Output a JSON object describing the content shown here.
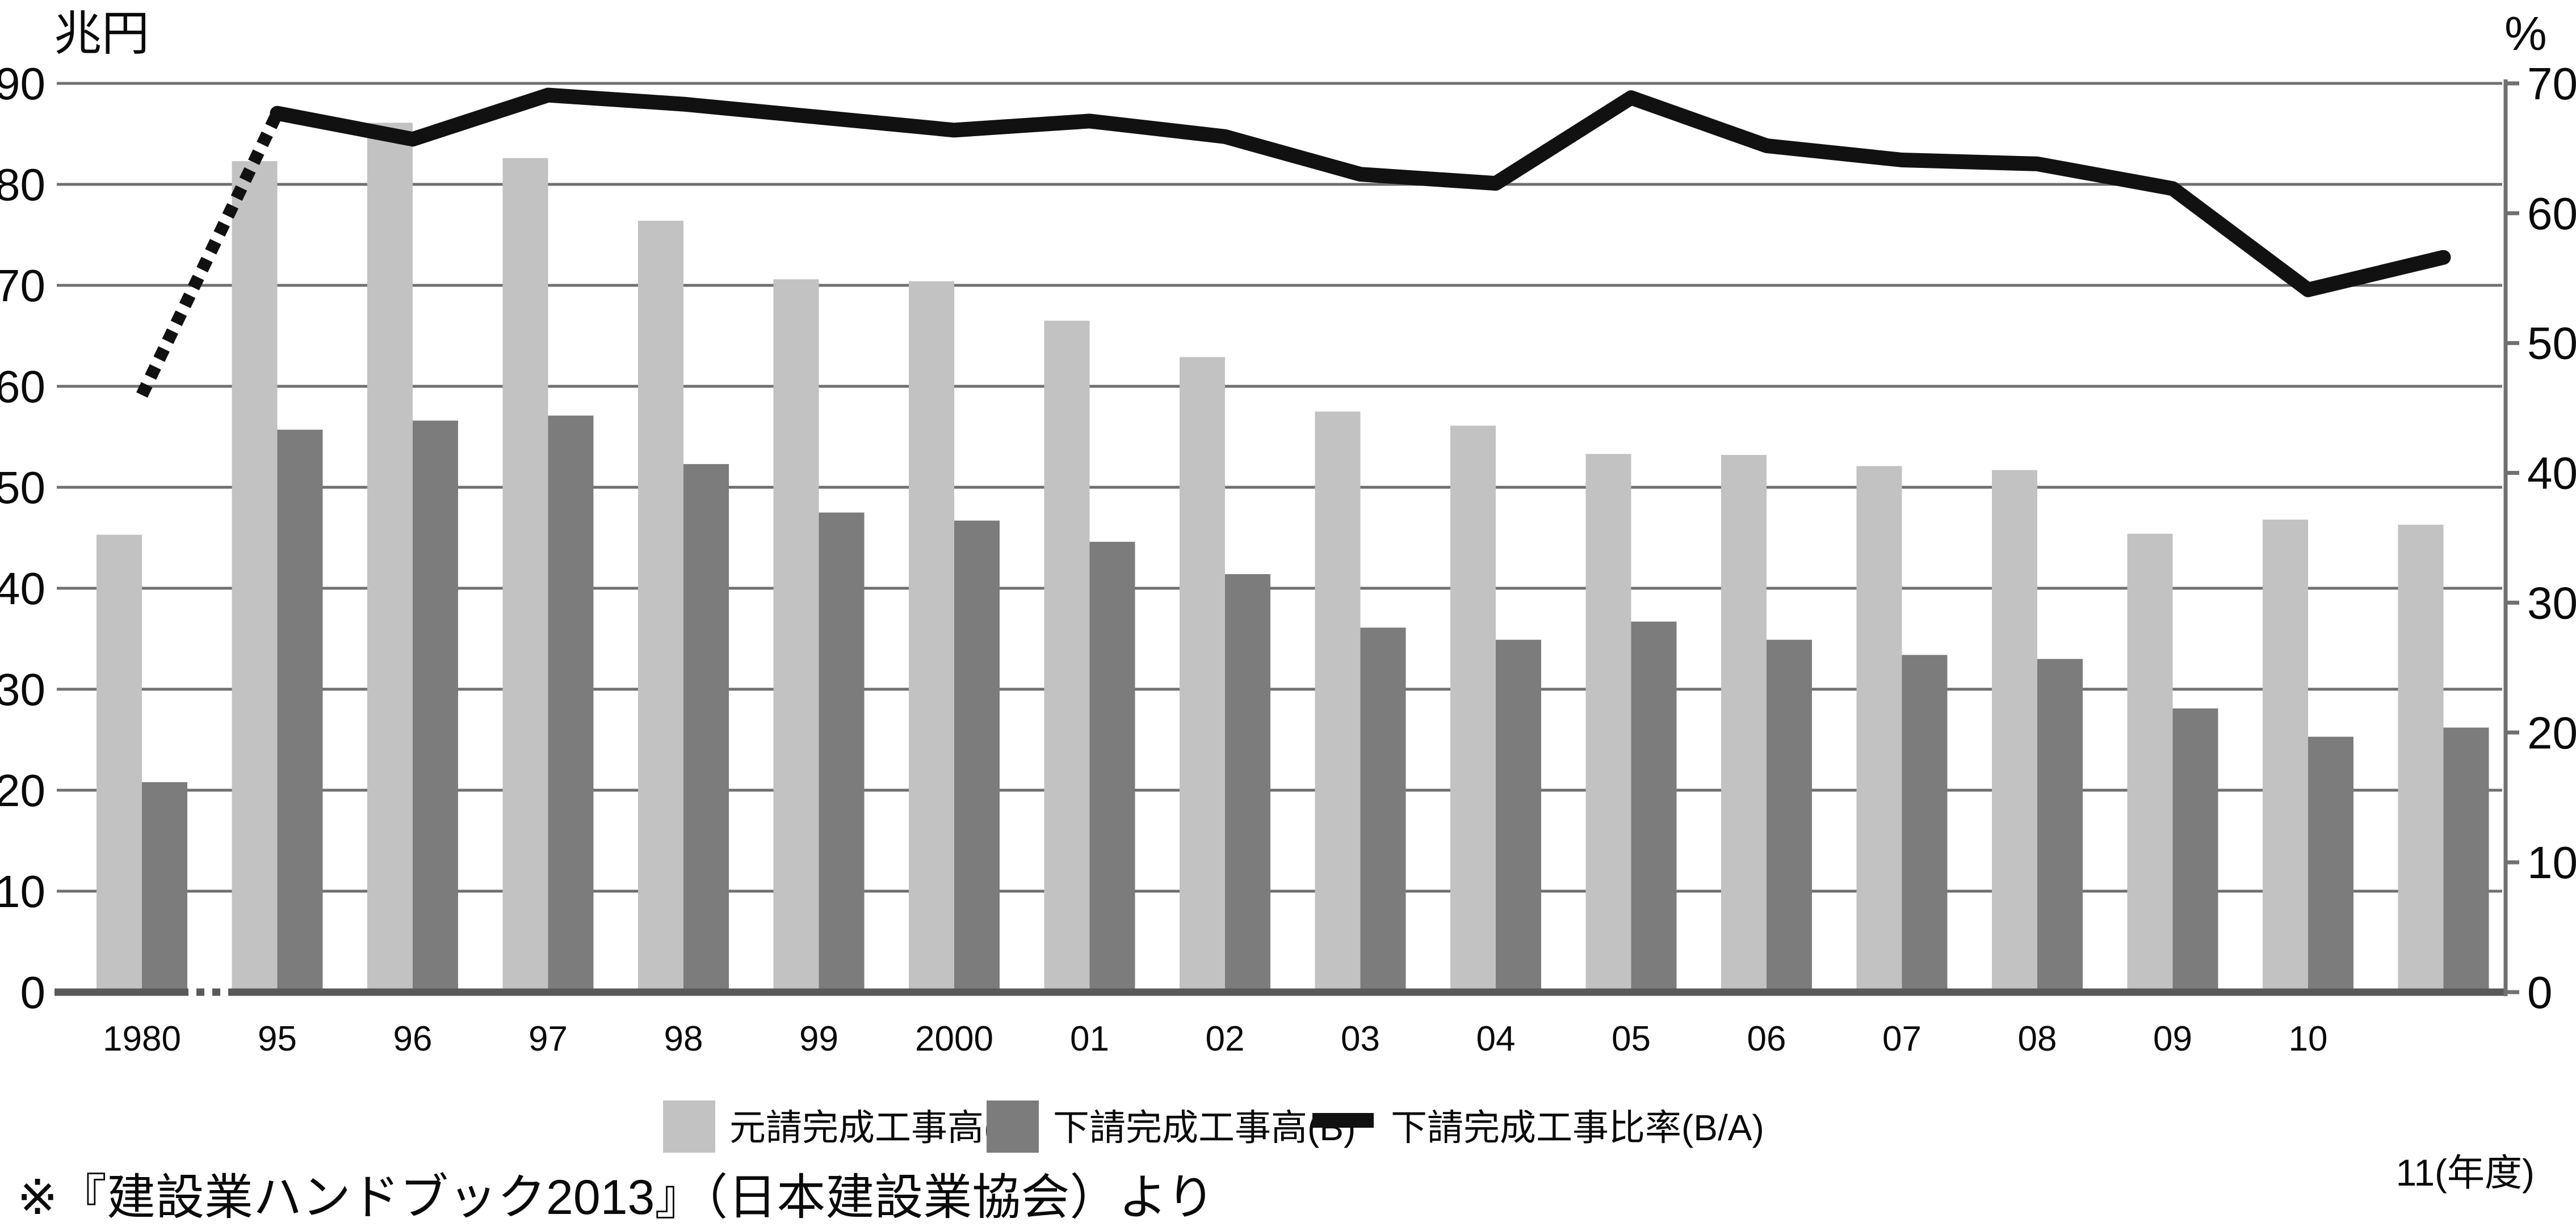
{
  "chart_data": {
    "type": "combo-bar-line",
    "title": "",
    "categories": [
      "1980",
      "95",
      "96",
      "97",
      "98",
      "99",
      "2000",
      "01",
      "02",
      "03",
      "04",
      "05",
      "06",
      "07",
      "08",
      "09",
      "10",
      "11"
    ],
    "series": [
      {
        "name": "元請完成工事高(A)",
        "type": "bar",
        "axis": "left",
        "color": "#c2c2c2",
        "values": [
          45.3,
          82.3,
          86.1,
          82.6,
          76.4,
          70.6,
          70.4,
          66.5,
          62.9,
          57.5,
          56.1,
          53.3,
          53.2,
          52.1,
          51.7,
          45.4,
          46.8,
          46.3
        ]
      },
      {
        "name": "下請完成工事高(B)",
        "type": "bar",
        "axis": "left",
        "color": "#7c7c7c",
        "values": [
          20.8,
          55.7,
          56.6,
          57.1,
          52.3,
          47.5,
          46.7,
          44.6,
          41.4,
          36.1,
          34.9,
          36.7,
          34.9,
          33.4,
          33.0,
          28.1,
          25.3,
          26.2
        ]
      },
      {
        "name": "下請完成工事比率(B/A)",
        "type": "line",
        "axis": "right",
        "color": "#111111",
        "first_segment_dashed": true,
        "values": [
          46.0,
          67.7,
          65.7,
          69.1,
          68.4,
          67.4,
          66.4,
          67.1,
          65.9,
          63.0,
          62.3,
          68.9,
          65.2,
          64.1,
          63.8,
          61.9,
          54.1,
          56.6
        ]
      }
    ],
    "left_axis": {
      "unit": "兆円",
      "min": 0,
      "max": 90,
      "step": 10,
      "ticks": [
        "0",
        "10",
        "20",
        "30",
        "40",
        "50",
        "60",
        "70",
        "80",
        "90"
      ]
    },
    "right_axis": {
      "unit": "%",
      "min": 0,
      "max": 70,
      "step": 10,
      "ticks": [
        "0",
        "10",
        "20",
        "30",
        "40",
        "50",
        "60",
        "70"
      ]
    },
    "gridlines": true,
    "legend_position": "bottom",
    "axis_break_between": [
      "1980",
      "95"
    ],
    "axis_note": "11(年度)",
    "colors": {
      "grid": "#707070",
      "baseline": "#595959",
      "background": "#ffffff"
    }
  },
  "footer": {
    "source_note": "※『建設業ハンドブック2013』（日本建設業協会）より"
  }
}
